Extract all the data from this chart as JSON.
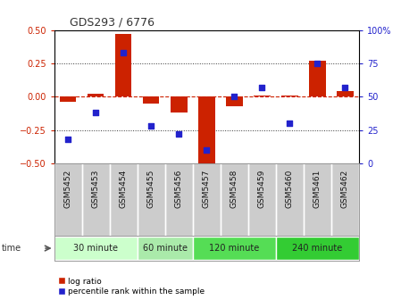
{
  "title": "GDS293 / 6776",
  "samples": [
    "GSM5452",
    "GSM5453",
    "GSM5454",
    "GSM5455",
    "GSM5456",
    "GSM5457",
    "GSM5458",
    "GSM5459",
    "GSM5460",
    "GSM5461",
    "GSM5462"
  ],
  "log_ratio": [
    -0.04,
    0.02,
    0.47,
    -0.05,
    -0.12,
    -0.53,
    -0.07,
    0.01,
    0.01,
    0.27,
    0.04
  ],
  "percentile": [
    18,
    38,
    83,
    28,
    22,
    10,
    50,
    57,
    30,
    75,
    57
  ],
  "groups": [
    {
      "label": "30 minute",
      "samples": [
        0,
        1,
        2
      ],
      "color": "#ccffcc"
    },
    {
      "label": "60 minute",
      "samples": [
        3,
        4
      ],
      "color": "#aaeaaa"
    },
    {
      "label": "120 minute",
      "samples": [
        5,
        6,
        7
      ],
      "color": "#55dd55"
    },
    {
      "label": "240 minute",
      "samples": [
        8,
        9,
        10
      ],
      "color": "#33cc33"
    }
  ],
  "bar_color": "#cc2200",
  "dot_color": "#2222cc",
  "zero_line_color": "#cc2200",
  "dot_line_color": "#555555",
  "ylim_left": [
    -0.5,
    0.5
  ],
  "ylim_right": [
    0,
    100
  ],
  "yticks_left": [
    -0.5,
    -0.25,
    0.0,
    0.25,
    0.5
  ],
  "yticks_right": [
    0,
    25,
    50,
    75,
    100
  ],
  "background_color": "#ffffff",
  "plot_bg": "#ffffff",
  "tick_bg": "#cccccc"
}
